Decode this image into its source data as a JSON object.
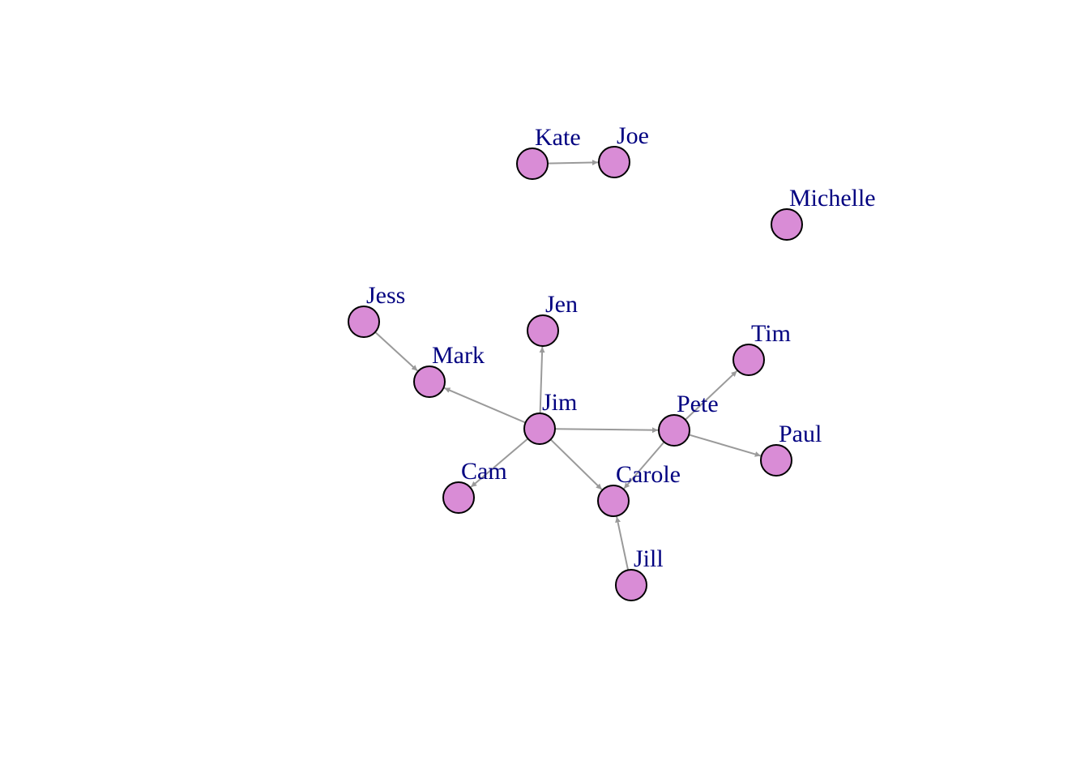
{
  "graph": {
    "directed": true,
    "colors": {
      "node_fill": "#D98CD6",
      "node_stroke": "#000000",
      "edge": "#9A9A9A",
      "label": "#000080"
    },
    "nodes": [
      {
        "id": "Kate",
        "label": "Kate"
      },
      {
        "id": "Joe",
        "label": "Joe"
      },
      {
        "id": "Michelle",
        "label": "Michelle"
      },
      {
        "id": "Jess",
        "label": "Jess"
      },
      {
        "id": "Jen",
        "label": "Jen"
      },
      {
        "id": "Mark",
        "label": "Mark"
      },
      {
        "id": "Tim",
        "label": "Tim"
      },
      {
        "id": "Jim",
        "label": "Jim"
      },
      {
        "id": "Pete",
        "label": "Pete"
      },
      {
        "id": "Paul",
        "label": "Paul"
      },
      {
        "id": "Cam",
        "label": "Cam"
      },
      {
        "id": "Carole",
        "label": "Carole"
      },
      {
        "id": "Jill",
        "label": "Jill"
      }
    ],
    "edges": [
      {
        "from": "Kate",
        "to": "Joe"
      },
      {
        "from": "Jess",
        "to": "Mark"
      },
      {
        "from": "Jim",
        "to": "Mark"
      },
      {
        "from": "Jim",
        "to": "Jen"
      },
      {
        "from": "Jim",
        "to": "Pete"
      },
      {
        "from": "Jim",
        "to": "Cam"
      },
      {
        "from": "Jim",
        "to": "Carole"
      },
      {
        "from": "Pete",
        "to": "Tim"
      },
      {
        "from": "Pete",
        "to": "Paul"
      },
      {
        "from": "Pete",
        "to": "Carole"
      },
      {
        "from": "Jill",
        "to": "Carole"
      }
    ]
  }
}
